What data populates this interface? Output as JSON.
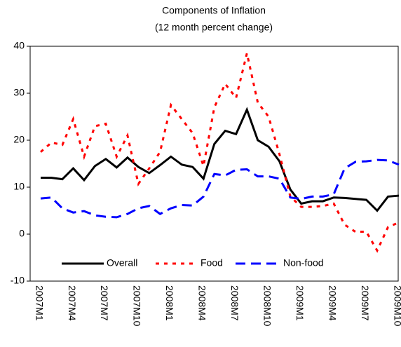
{
  "chart_data": {
    "type": "line",
    "title": "Components of Inflation",
    "subtitle": "(12 month percent change)",
    "categories": [
      "2007M1",
      null,
      null,
      "2007M4",
      null,
      null,
      "2007M7",
      null,
      null,
      "2007M10",
      null,
      null,
      "2008M1",
      null,
      null,
      "2008M4",
      null,
      null,
      "2008M7",
      null,
      null,
      "2008M10",
      null,
      null,
      "2009M1",
      null,
      null,
      "2009M4",
      null,
      null,
      "2009M7",
      null,
      null,
      "2009M10"
    ],
    "series": [
      {
        "name": "Overall",
        "color": "#000000",
        "dash": "solid",
        "values": [
          12,
          12,
          11.7,
          14,
          11.5,
          14.5,
          16,
          14.2,
          16.3,
          14.3,
          13,
          14.7,
          16.5,
          14.8,
          14.3,
          11.8,
          19.2,
          22,
          21.3,
          26.5,
          20,
          18.6,
          15.5,
          9.5,
          6.5,
          7,
          7,
          7.8,
          7.7,
          7.5,
          7.3,
          5,
          8,
          8.2
        ]
      },
      {
        "name": "Food",
        "color": "#ff0000",
        "dash": "dotted",
        "values": [
          17.5,
          19.5,
          19,
          24.5,
          16.5,
          23,
          23.5,
          16.5,
          21,
          10.7,
          14,
          17.5,
          27.5,
          24.5,
          21.5,
          14.5,
          27,
          32,
          29,
          38.5,
          28,
          25,
          17,
          8,
          5.8,
          5.8,
          6,
          6.5,
          2,
          0.5,
          0.5,
          -3.5,
          1.5,
          2.5
        ]
      },
      {
        "name": "Non-food",
        "color": "#0000ff",
        "dash": "dashed",
        "values": [
          7.6,
          7.8,
          5.5,
          4.6,
          4.9,
          4,
          3.7,
          3.6,
          4.3,
          5.5,
          6,
          4.3,
          5.5,
          6.2,
          6.1,
          8,
          12.8,
          12.5,
          13.7,
          13.8,
          12.3,
          12.3,
          11.8,
          7.8,
          7.5,
          8,
          8,
          8.5,
          14,
          15.4,
          15.5,
          15.8,
          15.7,
          14.8
        ]
      }
    ],
    "ylim": [
      -10,
      40
    ],
    "yticks": [
      -10,
      0,
      10,
      20,
      30,
      40
    ],
    "grid": false,
    "legend": "bottom"
  }
}
